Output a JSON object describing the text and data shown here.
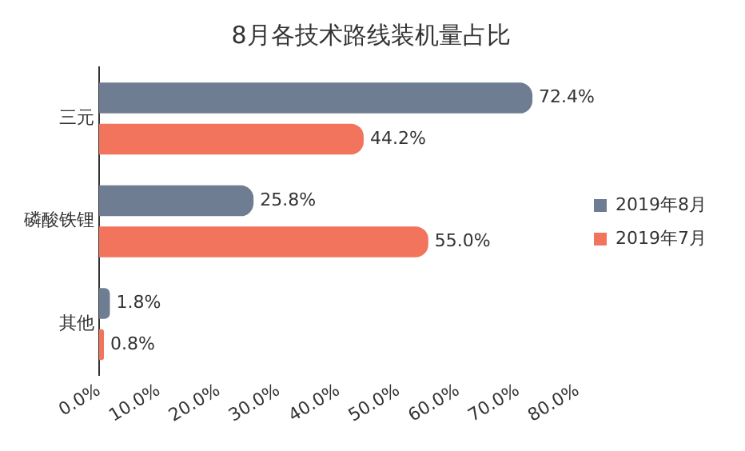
{
  "chart_data": {
    "type": "bar",
    "orientation": "horizontal",
    "title": "8月各技术路线装机量占比",
    "categories": [
      "三元",
      "磷酸铁锂",
      "其他"
    ],
    "series": [
      {
        "name": "2019年8月",
        "color": "#6e7d91",
        "values": [
          72.4,
          25.8,
          1.8
        ],
        "value_labels": [
          "72.4%",
          "25.8%",
          "1.8%"
        ]
      },
      {
        "name": "2019年7月",
        "color": "#f2745c",
        "values": [
          44.2,
          55.0,
          0.8
        ],
        "value_labels": [
          "44.2%",
          "55.0%",
          "0.8%"
        ]
      }
    ],
    "xlim": [
      0,
      80
    ],
    "xticks": [
      {
        "value": 0,
        "label": "0.0%"
      },
      {
        "value": 10,
        "label": "10.0%"
      },
      {
        "value": 20,
        "label": "20.0%"
      },
      {
        "value": 30,
        "label": "30.0%"
      },
      {
        "value": 40,
        "label": "40.0%"
      },
      {
        "value": 50,
        "label": "50.0%"
      },
      {
        "value": 60,
        "label": "60.0%"
      },
      {
        "value": 70,
        "label": "70.0%"
      },
      {
        "value": 80,
        "label": "80.0%"
      }
    ],
    "grid": false,
    "legend": "right"
  }
}
